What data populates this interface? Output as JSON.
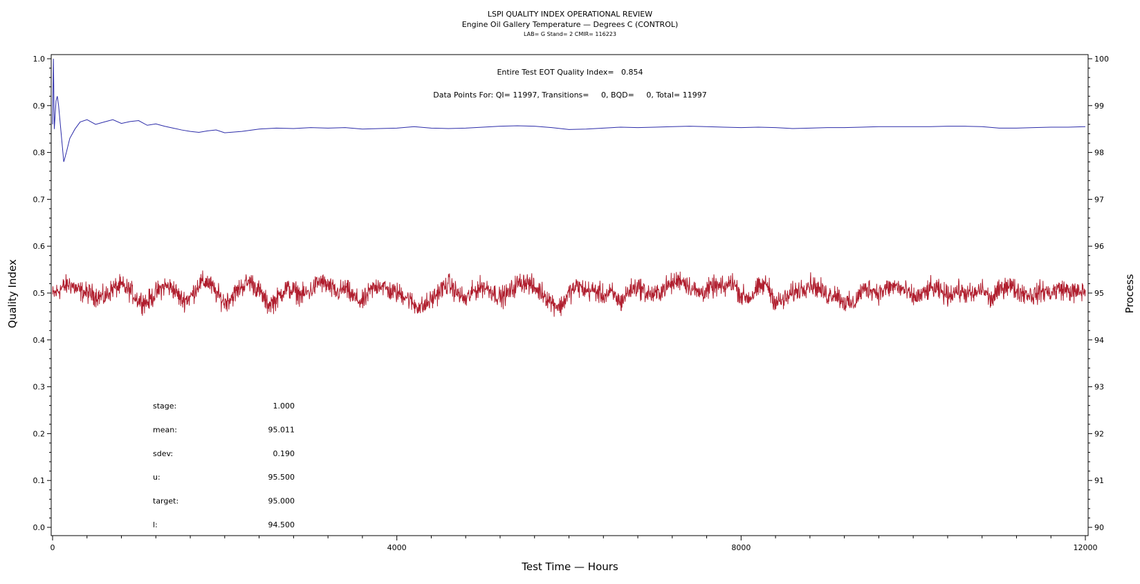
{
  "chart_data": {
    "type": "line",
    "title": "LSPI QUALITY INDEX OPERATIONAL REVIEW",
    "subtitle": "Engine Oil Gallery Temperature — Degrees C (CONTROL)",
    "subsubtitle": "LAB= G Stand= 2 CMIR= 116223",
    "xlabel": "Test Time — Hours",
    "ylabel_left": "Quality Index",
    "ylabel_right": "Process",
    "xlim": [
      0,
      12000
    ],
    "ylim_left": [
      0,
      1.0
    ],
    "ylim_right": [
      90,
      100
    ],
    "x_ticks": [
      "0",
      "4000",
      "8000",
      "12000"
    ],
    "y_left_ticks": [
      "0.0",
      "0.1",
      "0.2",
      "0.3",
      "0.4",
      "0.5",
      "0.6",
      "0.7",
      "0.8",
      "0.9",
      "1.0"
    ],
    "y_right_ticks": [
      "90",
      "91",
      "92",
      "93",
      "94",
      "95",
      "96",
      "97",
      "98",
      "99",
      "100"
    ],
    "grid": false,
    "annotations": {
      "qi_summary": "Entire Test EOT Quality Index=   0.854",
      "data_points": "Data Points For: QI= 11997, Transitions=     0, BQD=     0, Total= 11997"
    },
    "stats": [
      {
        "label": "stage:",
        "value": "1.000"
      },
      {
        "label": "mean:",
        "value": "95.011"
      },
      {
        "label": "sdev:",
        "value": "0.190"
      },
      {
        "label": "u:",
        "value": "95.500"
      },
      {
        "label": "target:",
        "value": "95.000"
      },
      {
        "label": "l:",
        "value": "94.500"
      }
    ],
    "series": [
      {
        "axis": "left",
        "color": "#2a2aa8",
        "x": [
          0,
          10,
          20,
          30,
          40,
          55,
          70,
          90,
          110,
          130,
          160,
          200,
          260,
          320,
          400,
          500,
          600,
          700,
          800,
          900,
          1000,
          1100,
          1200,
          1300,
          1400,
          1500,
          1600,
          1700,
          1800,
          1900,
          2000,
          2200,
          2400,
          2600,
          2800,
          3000,
          3200,
          3400,
          3600,
          3800,
          4000,
          4200,
          4400,
          4600,
          4800,
          5000,
          5200,
          5400,
          5600,
          5800,
          6000,
          6200,
          6400,
          6600,
          6800,
          7000,
          7200,
          7400,
          7600,
          7800,
          8000,
          8200,
          8400,
          8600,
          8800,
          9000,
          9200,
          9400,
          9600,
          9800,
          10000,
          10200,
          10400,
          10600,
          10800,
          11000,
          11200,
          11400,
          11600,
          11800,
          12000
        ],
        "y": [
          0.86,
          1.0,
          0.85,
          0.88,
          0.91,
          0.92,
          0.9,
          0.86,
          0.82,
          0.78,
          0.8,
          0.83,
          0.85,
          0.865,
          0.87,
          0.86,
          0.865,
          0.87,
          0.862,
          0.866,
          0.868,
          0.858,
          0.861,
          0.856,
          0.852,
          0.848,
          0.845,
          0.843,
          0.846,
          0.848,
          0.842,
          0.845,
          0.85,
          0.852,
          0.851,
          0.853,
          0.852,
          0.853,
          0.85,
          0.851,
          0.852,
          0.855,
          0.852,
          0.851,
          0.852,
          0.854,
          0.856,
          0.857,
          0.856,
          0.853,
          0.849,
          0.85,
          0.852,
          0.854,
          0.853,
          0.854,
          0.855,
          0.856,
          0.855,
          0.854,
          0.853,
          0.854,
          0.853,
          0.851,
          0.852,
          0.853,
          0.853,
          0.854,
          0.855,
          0.855,
          0.855,
          0.855,
          0.856,
          0.856,
          0.855,
          0.852,
          0.852,
          0.853,
          0.854,
          0.854,
          0.855
        ]
      },
      {
        "axis": "right",
        "color": "#b01e2e",
        "x": [
          0,
          100,
          200,
          300,
          400,
          500,
          600,
          700,
          800,
          900,
          1000,
          1100,
          1200,
          1300,
          1400,
          1500,
          1600,
          1700,
          1800,
          1900,
          2000,
          2100,
          2200,
          2300,
          2400,
          2500,
          2600,
          2700,
          2800,
          2900,
          3000,
          3100,
          3200,
          3300,
          3400,
          3500,
          3600,
          3700,
          3800,
          3900,
          4000,
          4100,
          4200,
          4300,
          4400,
          4500,
          4600,
          4700,
          4800,
          4900,
          5000,
          5100,
          5200,
          5300,
          5400,
          5500,
          5600,
          5700,
          5800,
          5900,
          6000,
          6100,
          6200,
          6300,
          6400,
          6500,
          6600,
          6700,
          6800,
          6900,
          7000,
          7100,
          7200,
          7300,
          7400,
          7500,
          7600,
          7700,
          7800,
          7900,
          8000,
          8100,
          8200,
          8300,
          8400,
          8500,
          8600,
          8700,
          8800,
          8900,
          9000,
          9100,
          9200,
          9300,
          9400,
          9500,
          9600,
          9700,
          9800,
          9900,
          10000,
          10100,
          10200,
          10300,
          10400,
          10500,
          10600,
          10700,
          10800,
          10900,
          11000,
          11100,
          11200,
          11300,
          11400,
          11500,
          11600,
          11700,
          11800,
          11900,
          12000
        ],
        "y": [
          94.95,
          95.1,
          95.2,
          95.05,
          95.0,
          94.95,
          94.9,
          95.1,
          95.15,
          95.05,
          94.85,
          94.8,
          95.0,
          95.15,
          95.1,
          94.85,
          94.9,
          95.2,
          95.25,
          95.0,
          94.8,
          94.95,
          95.15,
          95.25,
          95.05,
          94.75,
          94.85,
          95.1,
          95.05,
          94.95,
          95.05,
          95.25,
          95.15,
          95.0,
          95.1,
          94.9,
          94.8,
          95.05,
          95.2,
          95.05,
          95.0,
          94.95,
          94.75,
          94.7,
          94.85,
          95.05,
          95.2,
          95.0,
          94.85,
          95.05,
          95.15,
          95.05,
          94.9,
          95.0,
          95.2,
          95.25,
          95.1,
          95.0,
          94.8,
          94.7,
          95.0,
          95.15,
          95.05,
          95.05,
          94.95,
          95.0,
          94.8,
          95.05,
          95.15,
          95.0,
          94.95,
          95.1,
          95.2,
          95.3,
          95.15,
          95.0,
          95.05,
          95.15,
          95.1,
          95.25,
          94.95,
          94.9,
          95.1,
          95.2,
          94.8,
          94.85,
          95.0,
          95.1,
          95.2,
          95.1,
          94.95,
          95.0,
          94.8,
          94.75,
          95.05,
          95.1,
          95.0,
          95.1,
          95.15,
          95.05,
          94.9,
          94.95,
          95.1,
          95.05,
          94.95,
          95.05,
          95.0,
          94.95,
          95.1,
          94.85,
          95.05,
          95.2,
          95.05,
          95.0,
          94.95,
          95.05,
          95.0,
          95.1,
          95.05,
          95.0,
          95.05
        ]
      }
    ]
  }
}
